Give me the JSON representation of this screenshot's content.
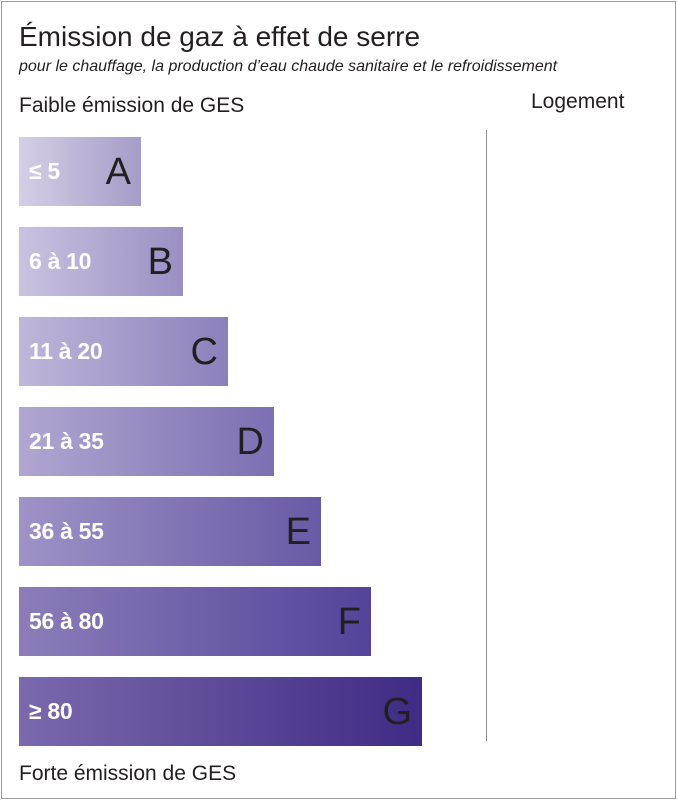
{
  "title": "Émission de gaz à effet de serre",
  "subtitle": "pour le chauffage, la production d’eau chaude sanitaire et le refroidissement",
  "scale_top_label": "Faible émission de GES",
  "scale_bottom_label": "Forte émission de GES",
  "column_header": "Logement",
  "colors": {
    "bar_lightest": "#d4cfe6",
    "bar_darkest": "#3f2b84",
    "range_text": "#ffffff",
    "letter_text": "#231f20",
    "divider": "#8c8c8c"
  },
  "chart_data": {
    "type": "bar",
    "orientation": "horizontal",
    "categories": [
      "A",
      "B",
      "C",
      "D",
      "E",
      "F",
      "G"
    ],
    "ranges": [
      "≤ 5",
      "6 à 10",
      "11 à 20",
      "21 à 35",
      "36 à 55",
      "56 à 80",
      "≥ 80"
    ],
    "class_rank": [
      1,
      2,
      3,
      4,
      5,
      6,
      7
    ],
    "bar_colors": [
      [
        "#d4cfe6",
        "#a59cc8"
      ],
      [
        "#c9c3e0",
        "#9a8fc3"
      ],
      [
        "#bfb6da",
        "#8c80bb"
      ],
      [
        "#b1a6d1",
        "#7d6fb2"
      ],
      [
        "#9f92c6",
        "#6a59a5"
      ],
      [
        "#8c7db9",
        "#55439a"
      ],
      [
        "#7a69ad",
        "#3f2b84"
      ]
    ],
    "logement_value": null
  }
}
